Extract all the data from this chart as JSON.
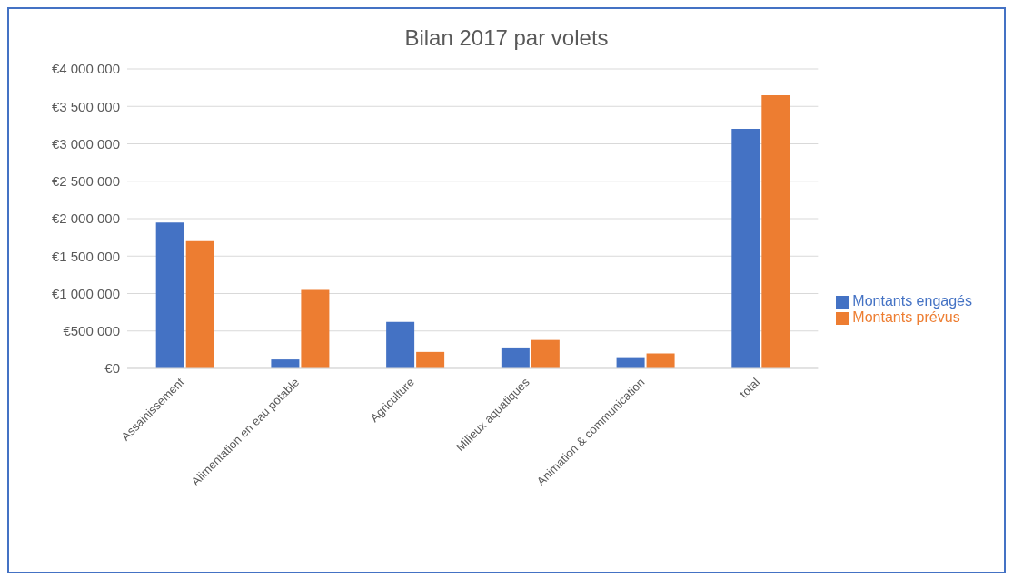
{
  "chart_data": {
    "type": "bar",
    "title": "Bilan 2017 par volets",
    "categories": [
      "Assainissement",
      "Alimentation en eau potable",
      "Agriculture",
      "Milieux aquatiques",
      "Animation & communication",
      "total"
    ],
    "series": [
      {
        "name": "Montants engagés",
        "color": "#4472c4",
        "values": [
          1950000,
          120000,
          620000,
          280000,
          150000,
          3200000
        ]
      },
      {
        "name": "Montants prévus",
        "color": "#ed7d31",
        "values": [
          1700000,
          1050000,
          220000,
          380000,
          200000,
          3650000
        ]
      }
    ],
    "ylim": [
      0,
      4000000
    ],
    "yticks": [
      {
        "value": 0,
        "label": "€0"
      },
      {
        "value": 500000,
        "label": "€500 000"
      },
      {
        "value": 1000000,
        "label": "€1 000 000"
      },
      {
        "value": 1500000,
        "label": "€1 500 000"
      },
      {
        "value": 2000000,
        "label": "€2 000 000"
      },
      {
        "value": 2500000,
        "label": "€2 500 000"
      },
      {
        "value": 3000000,
        "label": "€3 000 000"
      },
      {
        "value": 3500000,
        "label": "€3 500 000"
      },
      {
        "value": 4000000,
        "label": "€4 000 000"
      }
    ],
    "grid": "y",
    "legend": "right"
  }
}
